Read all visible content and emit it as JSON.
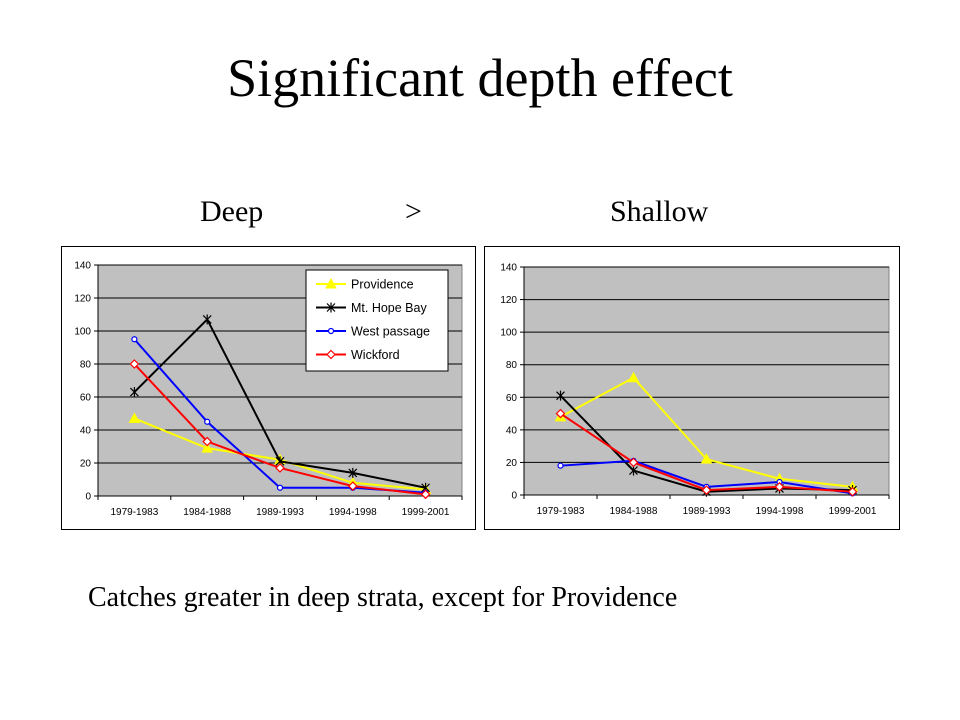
{
  "slide": {
    "title": "Significant depth effect",
    "deep_label": "Deep",
    "comparison_symbol": ">",
    "shallow_label": "Shallow",
    "caption": "Catches greater in deep strata, except for Providence"
  },
  "chart_data": [
    {
      "id": "deep",
      "type": "line",
      "title": "",
      "xlabel": "",
      "ylabel": "",
      "categories": [
        "1979-1983",
        "1984-1988",
        "1989-1993",
        "1994-1998",
        "1999-2001"
      ],
      "ylim": [
        0,
        140
      ],
      "yticks": [
        0,
        20,
        40,
        60,
        80,
        100,
        120,
        140
      ],
      "grid": true,
      "plot_background": "#c0c0c0",
      "legend": "top-right",
      "series": [
        {
          "name": "Providence",
          "color": "#ffff00",
          "marker": "triangle",
          "values": [
            47,
            29,
            22,
            8,
            4
          ]
        },
        {
          "name": "Mt. Hope Bay",
          "color": "#000000",
          "marker": "star",
          "values": [
            63,
            107,
            21,
            14,
            5
          ]
        },
        {
          "name": "West passage",
          "color": "#0000ff",
          "marker": "circle",
          "values": [
            95,
            45,
            5,
            5,
            2
          ]
        },
        {
          "name": "Wickford",
          "color": "#ff0000",
          "marker": "diamond",
          "values": [
            80,
            33,
            17,
            6,
            1
          ]
        }
      ]
    },
    {
      "id": "shallow",
      "type": "line",
      "title": "",
      "xlabel": "",
      "ylabel": "",
      "categories": [
        "1979-1983",
        "1984-1988",
        "1989-1993",
        "1994-1998",
        "1999-2001"
      ],
      "ylim": [
        0,
        140
      ],
      "yticks": [
        0,
        20,
        40,
        60,
        80,
        100,
        120,
        140
      ],
      "grid": true,
      "plot_background": "#c0c0c0",
      "legend": "none",
      "series": [
        {
          "name": "Providence",
          "color": "#ffff00",
          "marker": "triangle",
          "values": [
            48,
            72,
            22,
            10,
            5
          ]
        },
        {
          "name": "Mt. Hope Bay",
          "color": "#000000",
          "marker": "star",
          "values": [
            61,
            15,
            2,
            4,
            3
          ]
        },
        {
          "name": "West passage",
          "color": "#0000ff",
          "marker": "circle",
          "values": [
            18,
            21,
            5,
            8,
            1
          ]
        },
        {
          "name": "Wickford",
          "color": "#ff0000",
          "marker": "diamond",
          "values": [
            50,
            20,
            3,
            5,
            2
          ]
        }
      ]
    }
  ]
}
